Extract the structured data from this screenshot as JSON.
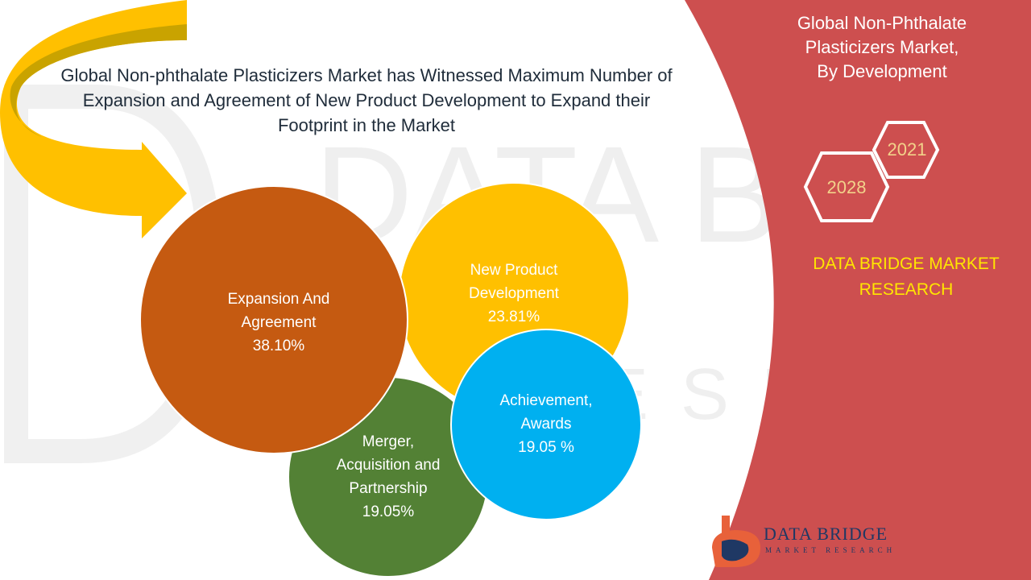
{
  "headline": "Global Non-phthalate Plasticizers Market has Witnessed Maximum Number of Expansion and Agreement of New Product Development to Expand their Footprint in the Market",
  "side_panel": {
    "title_lines": [
      "Global Non-Phthalate",
      "Plasticizers Market,",
      "By Development"
    ],
    "year_start": "2021",
    "year_end": "2028",
    "brand_lines": [
      "DATA BRIDGE MARKET",
      "RESEARCH"
    ],
    "panel_color": "#cd4f4f",
    "brand_color": "#ffe600"
  },
  "bubbles": [
    {
      "id": "expansion",
      "label_lines": [
        "Expansion And",
        "Agreement"
      ],
      "value": "38.10%",
      "percent": 38.1,
      "color": "#c55a11"
    },
    {
      "id": "new-product",
      "label_lines": [
        "New Product",
        "Development"
      ],
      "value": "23.81%",
      "percent": 23.81,
      "color": "#ffc000"
    },
    {
      "id": "merger",
      "label_lines": [
        "Merger,",
        "Acquisition and",
        "Partnership"
      ],
      "value": "19.05%",
      "percent": 19.05,
      "color": "#538135"
    },
    {
      "id": "achievement",
      "label_lines": [
        "Achievement,",
        "Awards"
      ],
      "value": "19.05 %",
      "percent": 19.05,
      "color": "#00b0f0"
    }
  ],
  "logo": {
    "name": "DATA BRIDGE",
    "tagline": "MARKET RESEARCH"
  },
  "watermark_icon": "data-bridge-watermark",
  "arrow_icon": "curved-arrow-icon"
}
